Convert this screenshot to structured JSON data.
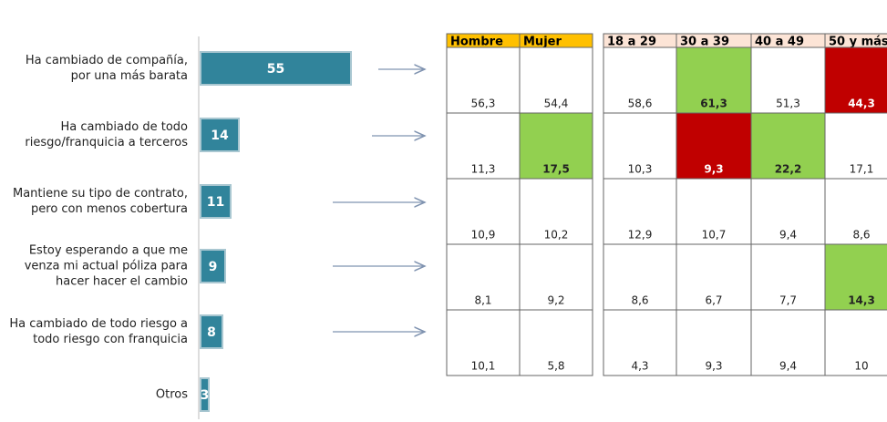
{
  "chart_data": {
    "type": "bar",
    "orientation": "horizontal",
    "categories": [
      "Ha cambiado de compañía, por una más barata",
      "Ha cambiado de todo riesgo/franquicia a terceros",
      "Mantiene su tipo de contrato, pero con menos cobertura",
      "Estoy esperando a que me venza mi actual póliza para hacer hacer el cambio",
      "Ha cambiado de todo riesgo a todo riesgo con franquicia",
      "Otros"
    ],
    "values": [
      55,
      14,
      11,
      9,
      8,
      3
    ],
    "color": "#31849b"
  },
  "tables": [
    {
      "header_color": "#ffc000",
      "headers": [
        "Hombre",
        "Mujer"
      ],
      "rows": [
        [
          "56,3",
          "54,4"
        ],
        [
          "11,3",
          {
            "text": "17,5",
            "fill": "#92d050"
          }
        ],
        [
          "10,9",
          "10,2"
        ],
        [
          "8,1",
          "9,2"
        ],
        [
          "10,1",
          "5,8"
        ]
      ]
    },
    {
      "header_color": "#fce4d6",
      "headers": [
        "18 a 29",
        "30 a 39",
        "40 a 49",
        "50 y más"
      ],
      "rows": [
        [
          "58,6",
          {
            "text": "61,3",
            "fill": "#92d050"
          },
          "51,3",
          {
            "text": "44,3",
            "fill": "#c00000"
          }
        ],
        [
          "10,3",
          {
            "text": "9,3",
            "fill": "#c00000"
          },
          {
            "text": "22,2",
            "fill": "#92d050"
          },
          "17,1"
        ],
        [
          "12,9",
          "10,7",
          "9,4",
          "8,6"
        ],
        [
          "8,6",
          "6,7",
          "7,7",
          {
            "text": "14,3",
            "fill": "#92d050"
          }
        ],
        [
          "4,3",
          "9,3",
          "9,4",
          "10"
        ]
      ]
    }
  ]
}
